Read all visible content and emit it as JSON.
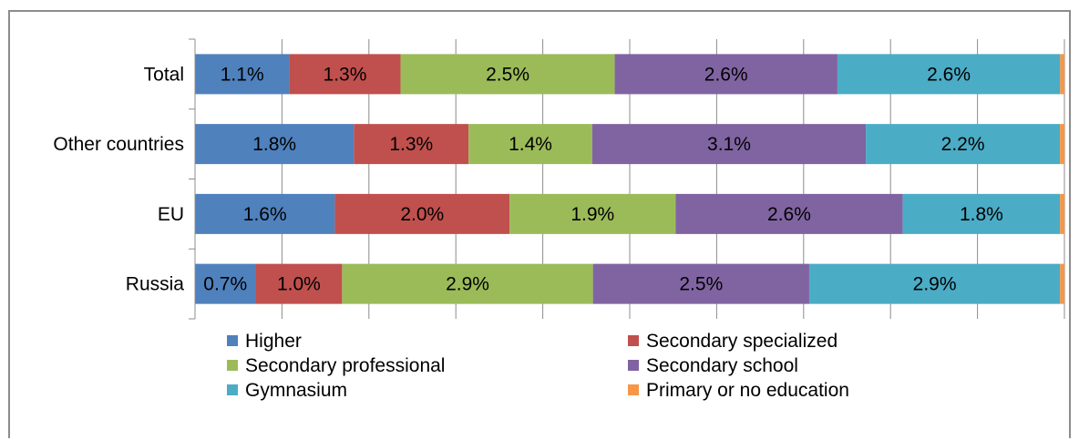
{
  "chart_data": {
    "type": "bar",
    "orientation": "horizontal",
    "stacked": true,
    "normalized": true,
    "categories": [
      "Total",
      "Other countries",
      "EU",
      "Russia"
    ],
    "series": [
      {
        "name": "Higher",
        "color": "#4f81bd",
        "values": [
          1.1,
          1.8,
          1.6,
          0.7
        ],
        "labels": [
          "1.1%",
          "1.8%",
          "1.6%",
          "0.7%"
        ]
      },
      {
        "name": "Secondary specialized",
        "color": "#c0504d",
        "values": [
          1.3,
          1.3,
          2.0,
          1.0
        ],
        "labels": [
          "1.3%",
          "1.3%",
          "2.0%",
          "1.0%"
        ]
      },
      {
        "name": "Secondary professional",
        "color": "#9bbb59",
        "values": [
          2.5,
          1.4,
          1.9,
          2.9
        ],
        "labels": [
          "2.5%",
          "1.4%",
          "1.9%",
          "2.9%"
        ]
      },
      {
        "name": "Secondary school",
        "color": "#8064a2",
        "values": [
          2.6,
          3.1,
          2.6,
          2.5
        ],
        "labels": [
          "2.6%",
          "3.1%",
          "2.6%",
          "2.5%"
        ]
      },
      {
        "name": "Gymnasium",
        "color": "#4bacc6",
        "values": [
          2.6,
          2.2,
          1.8,
          2.9
        ],
        "labels": [
          "2.6%",
          "2.2%",
          "1.8%",
          "2.9%"
        ]
      },
      {
        "name": "Primary or no education",
        "color": "#f79646",
        "values": [
          0.05,
          0.05,
          0.05,
          0.05
        ],
        "labels": [
          "",
          "",
          "",
          ""
        ]
      }
    ],
    "title": "",
    "xlabel": "",
    "ylabel": "",
    "grid": true,
    "legend_position": "bottom"
  }
}
